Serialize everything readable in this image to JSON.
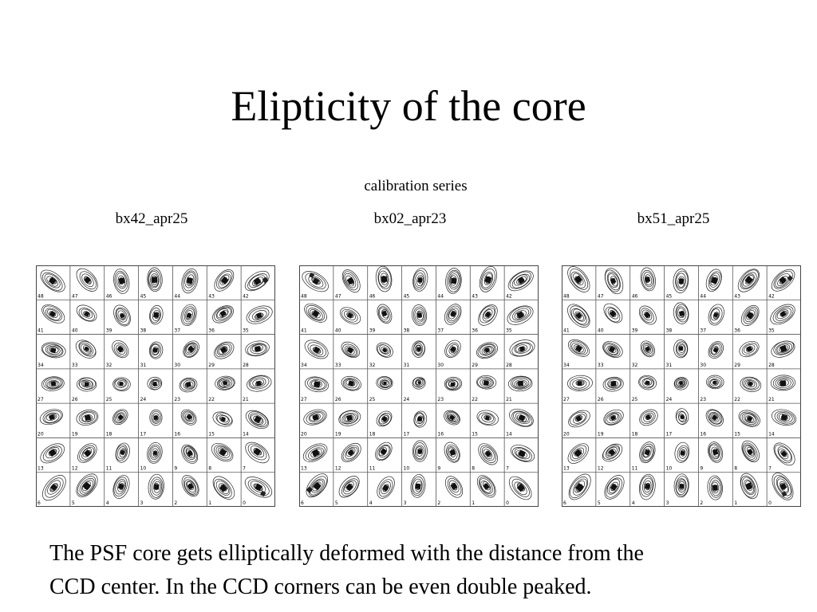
{
  "slide": {
    "title": "Elipticity of the core",
    "subtitle": "calibration series",
    "caption_line1": "The PSF core gets elliptically deformed with the distance from the",
    "caption_line2": "CCD center. In the CCD corners can be even double peaked."
  },
  "panels": [
    {
      "label": "bx42_apr25"
    },
    {
      "label": "bx02_apr23"
    },
    {
      "label": "bx51_apr25"
    }
  ],
  "grid": {
    "rows": [
      [
        "48",
        "47",
        "46",
        "45",
        "44",
        "43",
        "42"
      ],
      [
        "41",
        "40",
        "39",
        "38",
        "37",
        "36",
        "35"
      ],
      [
        "34",
        "33",
        "32",
        "31",
        "30",
        "29",
        "28"
      ],
      [
        "27",
        "26",
        "25",
        "24",
        "23",
        "22",
        "21"
      ],
      [
        "20",
        "19",
        "18",
        "17",
        "16",
        "15",
        "14"
      ],
      [
        "13",
        "12",
        "11",
        "10",
        "9",
        "8",
        "7"
      ],
      [
        "6",
        "5",
        "4",
        "3",
        "2",
        "1",
        "0"
      ]
    ]
  }
}
